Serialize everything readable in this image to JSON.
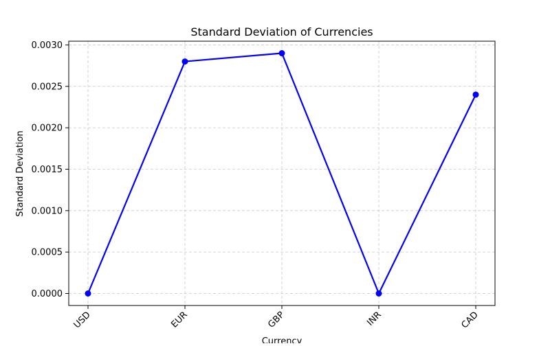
{
  "chart_data": {
    "type": "line",
    "title": "Standard Deviation of Currencies",
    "xlabel": "Currency",
    "ylabel": "Standard Deviation",
    "categories": [
      "USD",
      "EUR",
      "GBP",
      "INR",
      "CAD"
    ],
    "series": [
      {
        "values": [
          0.0,
          0.0028,
          0.0029,
          0.0,
          0.0024
        ],
        "color": "#0000ff",
        "marker": "circle"
      }
    ],
    "ylim": [
      -0.000145,
      0.003045
    ],
    "yticks": [
      0.0,
      0.0005,
      0.001,
      0.0015,
      0.002,
      0.0025,
      0.003
    ],
    "ytick_labels": [
      "0.0000",
      "0.0005",
      "0.0010",
      "0.0015",
      "0.0020",
      "0.0025",
      "0.0030"
    ],
    "grid": true,
    "grid_style": "dashed",
    "xtick_rotation": 45
  }
}
